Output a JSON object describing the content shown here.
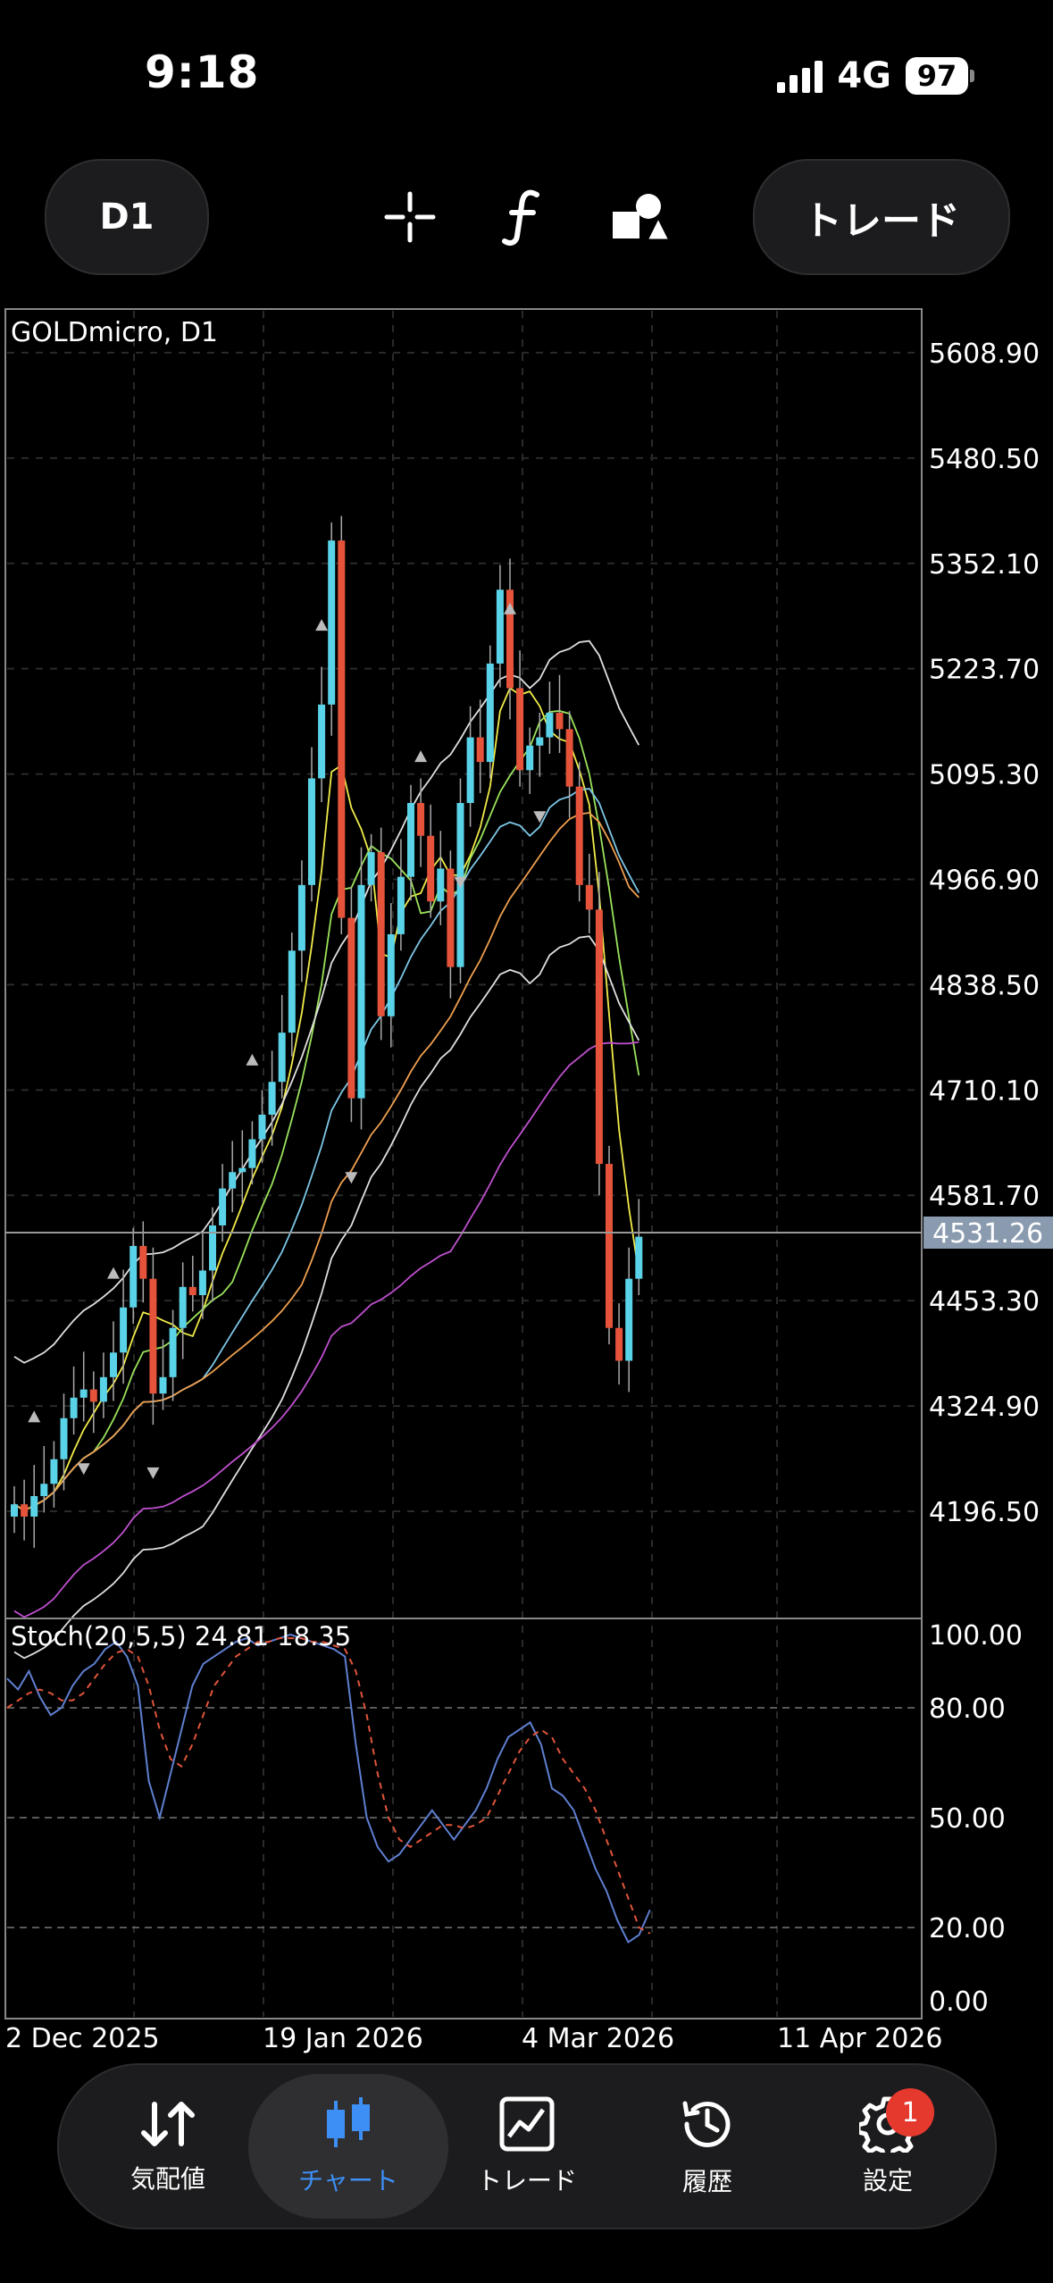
{
  "status": {
    "time": "9:18",
    "network": "4G",
    "battery": "97"
  },
  "toolbar": {
    "timeframe": "D1",
    "trade_label": "トレード",
    "icons": [
      "crosshair-icon",
      "function-icon",
      "objects-icon"
    ]
  },
  "chart": {
    "symbol_label": "GOLDmicro, D1",
    "price_ticks": [
      "5608.90",
      "5480.50",
      "5352.10",
      "5223.70",
      "5095.30",
      "4966.90",
      "4838.50",
      "4710.10",
      "4581.70",
      "4453.30",
      "4324.90",
      "4196.50"
    ],
    "current_price": "4531.26",
    "date_ticks": [
      "2 Dec 2025",
      "19 Jan 2026",
      "4 Mar 2026",
      "11 Apr 2026"
    ],
    "stoch_label": "Stoch(20,5,5) 24.81 18.35",
    "stoch_ticks": [
      "100.00",
      "80.00",
      "50.00",
      "20.00",
      "0.00"
    ],
    "colors": {
      "up": "#5ad3e8",
      "down": "#e5533a",
      "grid": "#2a2a2a",
      "current": "#999999"
    }
  },
  "chart_data": {
    "type": "candlestick",
    "symbol": "GOLDmicro",
    "timeframe": "D1",
    "ylim": [
      4068,
      5660
    ],
    "closes": [
      4205,
      4190,
      4215,
      4230,
      4260,
      4310,
      4335,
      4345,
      4330,
      4360,
      4390,
      4445,
      4520,
      4480,
      4340,
      4360,
      4420,
      4470,
      4460,
      4490,
      4545,
      4590,
      4610,
      4615,
      4650,
      4680,
      4720,
      4780,
      4880,
      4960,
      5090,
      5180,
      5380,
      4920,
      4700,
      4960,
      5000,
      4800,
      4900,
      4970,
      5060,
      5020,
      4940,
      4980,
      4860,
      5060,
      5140,
      5110,
      5230,
      5320,
      5200,
      5100,
      5130,
      5140,
      5170,
      5150,
      5080,
      4960,
      4930,
      4620,
      4420,
      4380,
      4480,
      4531.26
    ],
    "stoch": {
      "name": "Stoch(20,5,5)",
      "main_last": 24.81,
      "signal_last": 18.35,
      "levels": [
        80,
        50,
        20
      ],
      "main": [
        88,
        85,
        90,
        83,
        78,
        80,
        86,
        90,
        92,
        96,
        98,
        94,
        86,
        60,
        50,
        62,
        74,
        86,
        92,
        94,
        96,
        98,
        99,
        97,
        98,
        99,
        100,
        99,
        98,
        97,
        96,
        94,
        70,
        50,
        42,
        38,
        40,
        44,
        48,
        52,
        48,
        44,
        48,
        52,
        58,
        66,
        72,
        74,
        76,
        70,
        58,
        56,
        52,
        44,
        36,
        30,
        22,
        16,
        18,
        24.81
      ],
      "signal": [
        80,
        82,
        84,
        85,
        84,
        82,
        82,
        84,
        88,
        92,
        95,
        96,
        94,
        86,
        74,
        66,
        64,
        70,
        78,
        86,
        90,
        94,
        96,
        98,
        98,
        99,
        99,
        99,
        98,
        98,
        97,
        96,
        90,
        78,
        62,
        50,
        44,
        42,
        44,
        46,
        48,
        48,
        47,
        48,
        50,
        56,
        62,
        68,
        72,
        74,
        72,
        66,
        62,
        58,
        52,
        44,
        36,
        28,
        20,
        18.35
      ]
    }
  },
  "tabs": [
    {
      "label": "気配値",
      "icon": "quotes-icon"
    },
    {
      "label": "チャート",
      "icon": "chart-candle-icon",
      "active": true
    },
    {
      "label": "トレード",
      "icon": "trade-graph-icon"
    },
    {
      "label": "履歴",
      "icon": "history-icon"
    },
    {
      "label": "設定",
      "icon": "gear-icon",
      "badge": "1"
    }
  ]
}
